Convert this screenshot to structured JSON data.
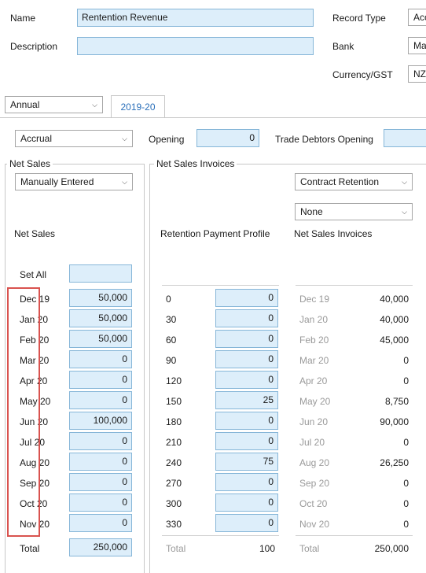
{
  "header": {
    "name_label": "Name",
    "name_value": "Rentention Revenue",
    "description_label": "Description",
    "description_value": "",
    "record_type_label": "Record Type",
    "record_type_value": "Acc",
    "bank_label": "Bank",
    "bank_value": "Ma",
    "currency_label": "Currency/GST",
    "currency_value": "NZ"
  },
  "period_select": "Annual",
  "tabs": [
    {
      "label": "2019-20",
      "active": true
    }
  ],
  "toolbar": {
    "method_value": "Accrual",
    "opening_label": "Opening",
    "opening_value": "0",
    "trade_debtors_label": "Trade Debtors Opening",
    "trade_debtors_value": ""
  },
  "net_sales_group": {
    "title": "Net Sales",
    "mode_value": "Manually Entered",
    "heading": "Net Sales",
    "set_all_label": "Set All",
    "set_all_value": "",
    "months": [
      "Dec 19",
      "Jan 20",
      "Feb 20",
      "Mar 20",
      "Apr 20",
      "May 20",
      "Jun 20",
      "Jul 20",
      "Aug 20",
      "Sep 20",
      "Oct 20",
      "Nov 20"
    ],
    "values": [
      "50,000",
      "50,000",
      "50,000",
      "0",
      "0",
      "0",
      "100,000",
      "0",
      "0",
      "0",
      "0",
      "0"
    ],
    "total_label": "Total",
    "total_value": "250,000"
  },
  "invoices_group": {
    "title": "Net Sales Invoices",
    "profile_select": "Contract Retention",
    "second_select": "None",
    "profile_heading": "Retention Payment Profile",
    "invoices_heading": "Net Sales Invoices",
    "days": [
      "0",
      "30",
      "60",
      "90",
      "120",
      "150",
      "180",
      "210",
      "240",
      "270",
      "300",
      "330"
    ],
    "percents": [
      "0",
      "0",
      "0",
      "0",
      "0",
      "25",
      "0",
      "0",
      "75",
      "0",
      "0",
      "0"
    ],
    "profile_total_label": "Total",
    "profile_total_value": "100",
    "invoice_months": [
      "Dec 19",
      "Jan 20",
      "Feb 20",
      "Mar 20",
      "Apr 20",
      "May 20",
      "Jun 20",
      "Jul 20",
      "Aug 20",
      "Sep 20",
      "Oct 20",
      "Nov 20"
    ],
    "invoice_values": [
      "40,000",
      "40,000",
      "45,000",
      "0",
      "0",
      "8,750",
      "90,000",
      "0",
      "26,250",
      "0",
      "0",
      "0"
    ],
    "invoices_total_label": "Total",
    "invoices_total_value": "250,000"
  },
  "colors": {
    "field_bg": "#ddeefa",
    "field_border": "#86b6d8",
    "highlight": "#d9534f",
    "tab_text": "#2a6fba"
  }
}
